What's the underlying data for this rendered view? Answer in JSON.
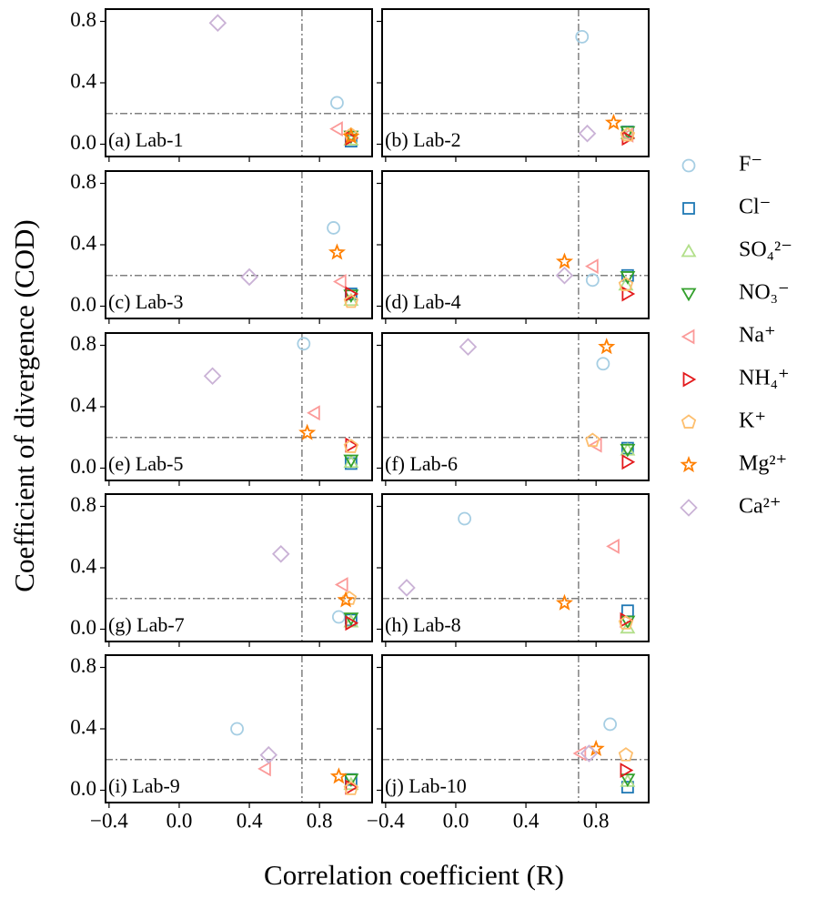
{
  "chart_data": {
    "type": "scatter",
    "xlabel": "Correlation coefficient (R)",
    "ylabel": "Coefficient of divergence (COD)",
    "xlim": [
      -0.42,
      1.1
    ],
    "ylim": [
      -0.08,
      0.88
    ],
    "xticks": [
      {
        "value": -0.4,
        "label": "−0.4"
      },
      {
        "value": 0,
        "label": "0.0"
      },
      0.4,
      0.8
    ],
    "yticks": [
      {
        "value": 0,
        "label": "0.0"
      },
      0.4,
      0.8
    ],
    "vline": 0.7,
    "hline": 0.2,
    "series": [
      {
        "name": "F⁻",
        "color": "#a6cee3",
        "marker": "circle"
      },
      {
        "name": "Cl⁻",
        "color": "#1f78b4",
        "marker": "square"
      },
      {
        "name": "SO₄²⁻",
        "color": "#b2df8a",
        "marker": "triangle-up"
      },
      {
        "name": "NO₃⁻",
        "color": "#33a02c",
        "marker": "triangle-down"
      },
      {
        "name": "Na⁺",
        "color": "#fb9a99",
        "marker": "triangle-left"
      },
      {
        "name": "NH₄⁺",
        "color": "#e31a1c",
        "marker": "triangle-right"
      },
      {
        "name": "K⁺",
        "color": "#fdbf6f",
        "marker": "pentagon"
      },
      {
        "name": "Mg²⁺",
        "color": "#ff7f00",
        "marker": "star"
      },
      {
        "name": "Ca²⁺",
        "color": "#cab2d6",
        "marker": "diamond"
      }
    ],
    "panels": [
      {
        "title": "(a) Lab-1",
        "x": [
          0.9,
          0.98,
          0.98,
          0.98,
          0.9,
          0.98,
          0.98,
          0.98,
          0.22
        ],
        "y": [
          0.27,
          0.02,
          0.03,
          0.05,
          0.1,
          0.04,
          0.06,
          0.05,
          0.79
        ]
      },
      {
        "title": "(b) Lab-2",
        "x": [
          0.72,
          0.98,
          0.98,
          0.98,
          0.98,
          0.98,
          0.98,
          0.9,
          0.75
        ],
        "y": [
          0.7,
          0.08,
          0.07,
          0.08,
          0.06,
          0.04,
          0.06,
          0.14,
          0.07
        ]
      },
      {
        "title": "(c) Lab-3",
        "x": [
          0.88,
          0.98,
          0.98,
          0.98,
          0.92,
          0.98,
          0.98,
          0.9,
          0.4
        ],
        "y": [
          0.51,
          0.08,
          0.04,
          0.07,
          0.16,
          0.08,
          0.03,
          0.35,
          0.19
        ]
      },
      {
        "title": "(d) Lab-4",
        "x": [
          0.78,
          0.98,
          0.97,
          0.98,
          0.78,
          0.98,
          0.97,
          0.62,
          0.62
        ],
        "y": [
          0.17,
          0.2,
          0.14,
          0.19,
          0.26,
          0.08,
          0.14,
          0.29,
          0.2
        ]
      },
      {
        "title": "(e) Lab-5",
        "x": [
          0.71,
          0.98,
          0.98,
          0.98,
          0.77,
          0.98,
          0.98,
          0.73,
          0.19
        ],
        "y": [
          0.81,
          0.03,
          0.04,
          0.05,
          0.36,
          0.15,
          0.14,
          0.23,
          0.6
        ]
      },
      {
        "title": "(f) Lab-6",
        "x": [
          0.84,
          0.98,
          0.98,
          0.98,
          0.8,
          0.98,
          0.78,
          0.86,
          0.07
        ],
        "y": [
          0.68,
          0.13,
          0.12,
          0.12,
          0.15,
          0.04,
          0.18,
          0.79,
          0.79
        ]
      },
      {
        "title": "(g) Lab-7",
        "x": [
          0.91,
          0.98,
          0.98,
          0.98,
          0.93,
          0.98,
          0.97,
          0.95,
          0.58
        ],
        "y": [
          0.08,
          0.06,
          0.05,
          0.07,
          0.29,
          0.04,
          0.2,
          0.19,
          0.49
        ]
      },
      {
        "title": "(h) Lab-8",
        "x": [
          0.05,
          0.98,
          0.98,
          0.98,
          0.9,
          0.97,
          0.97,
          0.62,
          -0.28
        ],
        "y": [
          0.72,
          0.12,
          0.01,
          0.05,
          0.54,
          0.06,
          0.04,
          0.17,
          0.27
        ]
      },
      {
        "title": "(i) Lab-9",
        "x": [
          0.33,
          0.98,
          0.98,
          0.98,
          0.49,
          0.98,
          0.98,
          0.91,
          0.51
        ],
        "y": [
          0.4,
          0.07,
          0.04,
          0.07,
          0.14,
          0.02,
          0.01,
          0.09,
          0.23
        ]
      },
      {
        "title": "(j) Lab-10",
        "x": [
          0.88,
          0.98,
          0.98,
          0.98,
          0.71,
          0.97,
          0.97,
          0.8,
          0.76
        ],
        "y": [
          0.43,
          0.02,
          0.06,
          0.07,
          0.24,
          0.13,
          0.23,
          0.27,
          0.24
        ]
      }
    ]
  }
}
